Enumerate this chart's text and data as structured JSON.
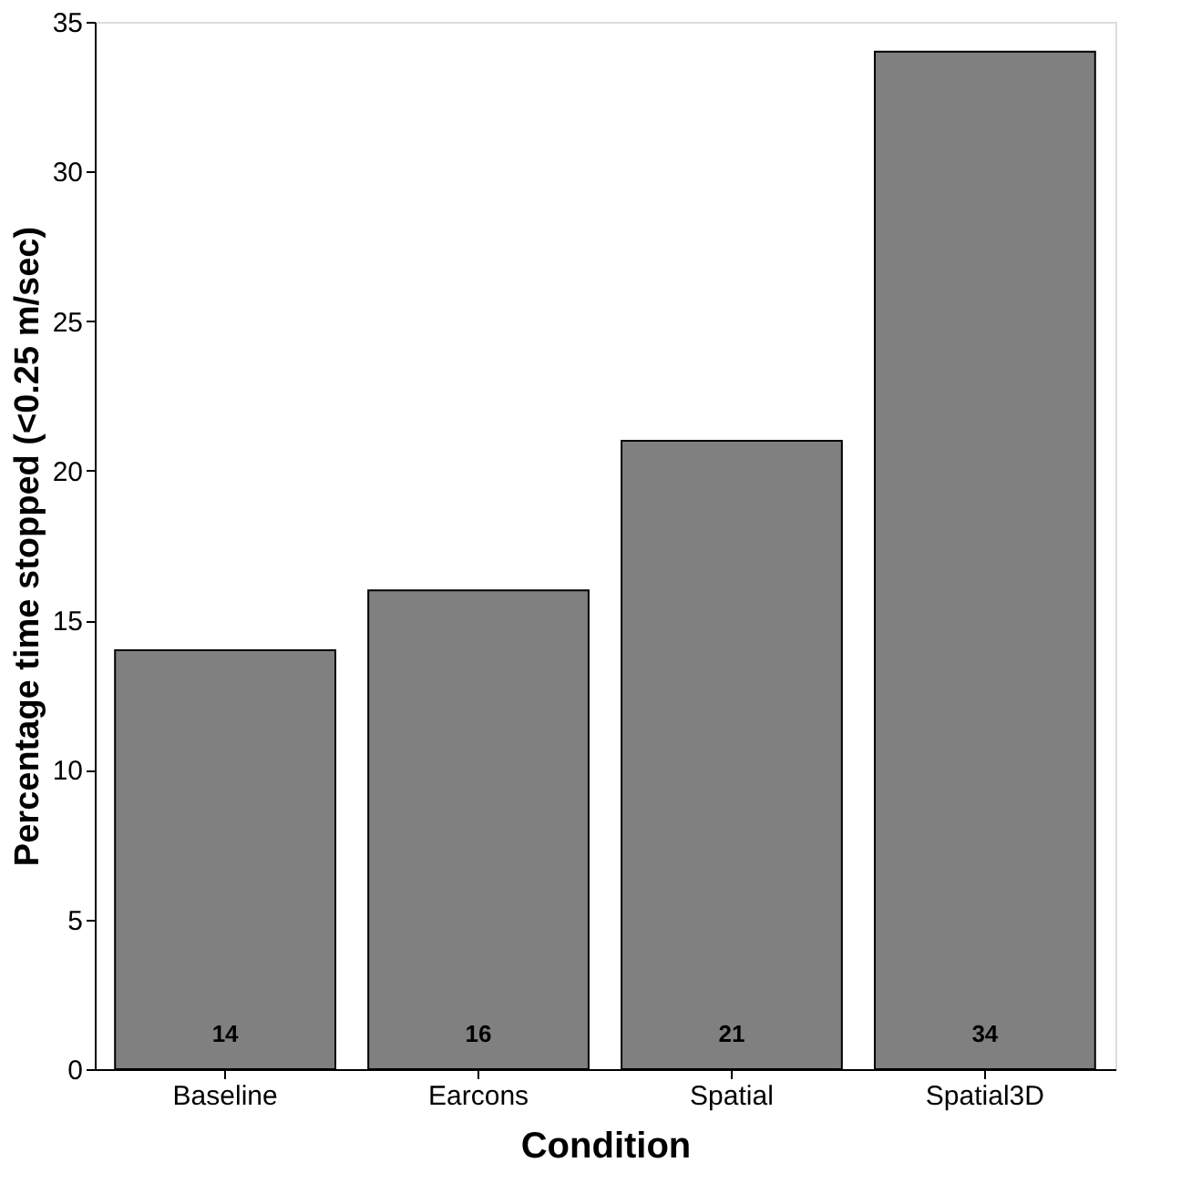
{
  "chart_data": {
    "type": "bar",
    "xlabel": "Condition",
    "ylabel": "Percentage time stopped (<0.25 m/sec)",
    "categories": [
      "Baseline",
      "Earcons",
      "Spatial",
      "Spatial3D"
    ],
    "values": [
      14,
      16,
      21,
      34
    ],
    "color": "#808080",
    "ylim": [
      0,
      35
    ],
    "yticks": [
      0,
      5,
      10,
      15,
      20,
      25,
      30,
      35
    ],
    "grid": false,
    "data_labels": true
  }
}
